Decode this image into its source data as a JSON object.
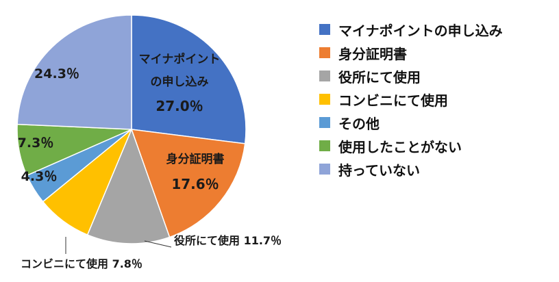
{
  "chart_data": {
    "type": "pie",
    "start_angle_deg": 0,
    "direction": "clockwise",
    "slices": [
      {
        "name": "マイナポイントの申し込み",
        "value": 27.0,
        "color": "#4472C4",
        "label_lines": [
          "マイナポイント",
          "の申し込み",
          "27.0％"
        ],
        "label_placement": "inside"
      },
      {
        "name": "身分証明書",
        "value": 17.6,
        "color": "#ED7D31",
        "label_lines": [
          "身分証明書",
          "17.6％"
        ],
        "label_placement": "inside"
      },
      {
        "name": "役所にて使用",
        "value": 11.7,
        "color": "#A5A5A5",
        "label_lines": [
          "役所にて使用 11.7％"
        ],
        "label_placement": "outside-leader"
      },
      {
        "name": "コンビニにて使用",
        "value": 7.8,
        "color": "#FFC000",
        "label_lines": [
          "コンビニにて使用 7.8％"
        ],
        "label_placement": "outside-leader"
      },
      {
        "name": "その他",
        "value": 4.3,
        "color": "#5B9BD5",
        "label_lines": [
          "4.3％"
        ],
        "label_placement": "inside"
      },
      {
        "name": "使用したことがない",
        "value": 7.3,
        "color": "#70AD47",
        "label_lines": [
          "7.3％"
        ],
        "label_placement": "inside"
      },
      {
        "name": "持っていない",
        "value": 24.3,
        "color": "#8FA4D8",
        "label_lines": [
          "24.3％"
        ],
        "label_placement": "inside"
      }
    ],
    "legend": {
      "position": "right",
      "entries": [
        "マイナポイントの申し込み",
        "身分証明書",
        "役所にて使用",
        "コンビニにて使用",
        "その他",
        "使用したことがない",
        "持っていない"
      ]
    }
  }
}
